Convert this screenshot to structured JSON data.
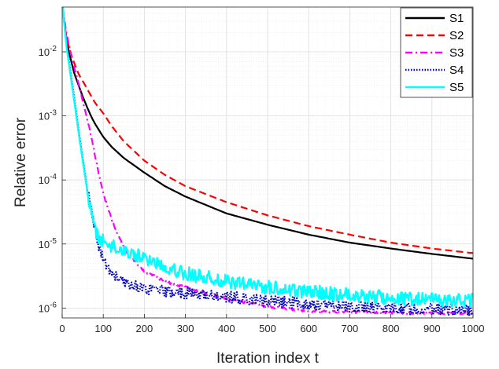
{
  "chart_data": {
    "type": "line",
    "title": "",
    "xlabel": "Iteration index t",
    "ylabel": "Relative error",
    "xlim": [
      0,
      1000
    ],
    "ylim": [
      7e-07,
      0.05
    ],
    "yscale": "log",
    "grid": true,
    "minor_grid": true,
    "legend_position": "top-right",
    "x_ticks": [
      {
        "value": 0,
        "label": "0"
      },
      {
        "value": 100,
        "label": "100"
      },
      {
        "value": 200,
        "label": "200"
      },
      {
        "value": 300,
        "label": "300"
      },
      {
        "value": 400,
        "label": "400"
      },
      {
        "value": 500,
        "label": "500"
      },
      {
        "value": 600,
        "label": "600"
      },
      {
        "value": 700,
        "label": "700"
      },
      {
        "value": 800,
        "label": "800"
      },
      {
        "value": 900,
        "label": "900"
      },
      {
        "value": 1000,
        "label": "1000"
      }
    ],
    "y_ticks": [
      {
        "value": 1e-06,
        "base": "10",
        "exp": "-6"
      },
      {
        "value": 1e-05,
        "base": "10",
        "exp": "-5"
      },
      {
        "value": 0.0001,
        "base": "10",
        "exp": "-4"
      },
      {
        "value": 0.001,
        "base": "10",
        "exp": "-3"
      },
      {
        "value": 0.01,
        "base": "10",
        "exp": "-2"
      }
    ],
    "series": [
      {
        "name": "S1",
        "color": "#000000",
        "dash": "solid",
        "x": [
          1,
          10,
          20,
          30,
          40,
          50,
          60,
          70,
          80,
          100,
          120,
          150,
          200,
          250,
          300,
          400,
          500,
          600,
          700,
          800,
          900,
          1000
        ],
        "y": [
          0.05,
          0.015,
          0.008,
          0.0045,
          0.003,
          0.002,
          0.0014,
          0.001,
          0.00075,
          0.00047,
          0.00033,
          0.00022,
          0.00013,
          8e-05,
          5.5e-05,
          3e-05,
          2e-05,
          1.4e-05,
          1.05e-05,
          8.5e-06,
          7e-06,
          5.9e-06
        ],
        "noise": 0
      },
      {
        "name": "S2",
        "color": "#ff0000",
        "dash": "dashed",
        "x": [
          1,
          10,
          20,
          30,
          40,
          50,
          60,
          80,
          100,
          120,
          150,
          200,
          250,
          300,
          400,
          500,
          600,
          700,
          800,
          900,
          1000
        ],
        "y": [
          0.05,
          0.017,
          0.01,
          0.0065,
          0.0045,
          0.0035,
          0.0027,
          0.0016,
          0.0011,
          0.0007,
          0.0004,
          0.0002,
          0.00012,
          8e-05,
          4.5e-05,
          2.8e-05,
          1.9e-05,
          1.4e-05,
          1.05e-05,
          8.5e-06,
          7.2e-06
        ],
        "noise": 0
      },
      {
        "name": "S3",
        "color": "#ff00ff",
        "dash": "dashdot",
        "x": [
          1,
          10,
          20,
          30,
          40,
          50,
          60,
          70,
          80,
          90,
          100,
          120,
          140,
          160,
          200,
          250,
          300,
          400,
          500,
          600,
          700,
          800,
          900,
          1000
        ],
        "y": [
          0.05,
          0.02,
          0.01,
          0.0055,
          0.0032,
          0.0017,
          0.00095,
          0.0005,
          0.00024,
          0.00012,
          6e-05,
          2.5e-05,
          1.2e-05,
          7e-06,
          3.8e-06,
          2.6e-06,
          2.1e-06,
          1.4e-06,
          1.05e-06,
          9e-07,
          8.7e-07,
          8.5e-07,
          8.4e-07,
          8.3e-07
        ],
        "noise": 0.02
      },
      {
        "name": "S4",
        "color": "#0000bf",
        "dash": "dotted",
        "x": [
          1,
          10,
          20,
          30,
          40,
          50,
          60,
          70,
          80,
          90,
          100,
          120,
          150,
          200,
          250,
          300,
          400,
          500,
          600,
          700,
          800,
          900,
          1000
        ],
        "y": [
          0.05,
          0.014,
          0.005,
          0.0018,
          0.0006,
          0.00022,
          8e-05,
          3.5e-05,
          1.6e-05,
          9e-06,
          5.5e-06,
          3.5e-06,
          2.5e-06,
          2e-06,
          1.8e-06,
          1.7e-06,
          1.5e-06,
          1.3e-06,
          1.15e-06,
          1.05e-06,
          1e-06,
          9.6e-07,
          9.2e-07
        ],
        "noise": 0.09
      },
      {
        "name": "S5",
        "color": "#00ffff",
        "dash": "solid",
        "x": [
          1,
          10,
          20,
          30,
          40,
          50,
          60,
          70,
          80,
          90,
          100,
          120,
          150,
          200,
          250,
          300,
          400,
          500,
          600,
          700,
          800,
          900,
          1000
        ],
        "y": [
          0.05,
          0.013,
          0.0045,
          0.0016,
          0.00055,
          0.0002,
          7.5e-05,
          3.2e-05,
          1.7e-05,
          1.2e-05,
          1.1e-05,
          9.5e-06,
          8e-06,
          6e-06,
          4.5e-06,
          3.5e-06,
          2.6e-06,
          2.1e-06,
          1.8e-06,
          1.6e-06,
          1.45e-06,
          1.35e-06,
          1.3e-06
        ],
        "noise": 0.11
      }
    ]
  }
}
